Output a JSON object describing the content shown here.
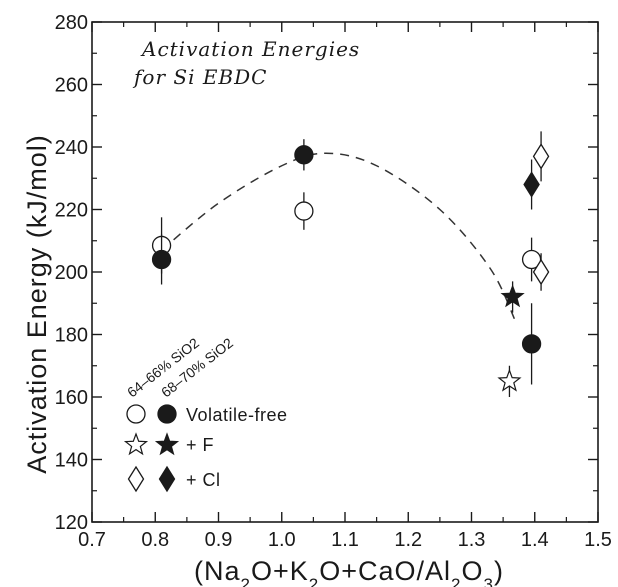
{
  "chart_data": {
    "type": "scatter",
    "title_lines": [
      "Activation Energies",
      "for Si EBDC"
    ],
    "xlabel": "(Na2O+K2O+CaO/Al2O3)",
    "ylabel": "Activation Energy (kJ/mol)",
    "xlim": [
      0.7,
      1.5
    ],
    "ylim": [
      120,
      280
    ],
    "x_ticks": [
      "0.7",
      "0.8",
      "0.9",
      "1.0",
      "1.1",
      "1.2",
      "1.3",
      "1.4",
      "1.5"
    ],
    "y_ticks": [
      "120",
      "140",
      "160",
      "180",
      "200",
      "220",
      "240",
      "260",
      "280"
    ],
    "grid": false,
    "legend_columns": [
      "64–66% SiO2",
      "68–70% SiO2"
    ],
    "legend": [
      {
        "label": "Volatile-free",
        "open_marker": "circle",
        "filled_marker": "circle"
      },
      {
        "label": "+ F",
        "open_marker": "star",
        "filled_marker": "star"
      },
      {
        "label": "+ Cl",
        "open_marker": "diamond",
        "filled_marker": "diamond"
      }
    ],
    "series": [
      {
        "marker": "circle",
        "fill": "open",
        "points": [
          {
            "x": 0.81,
            "y": 208.5,
            "err": 9
          },
          {
            "x": 1.035,
            "y": 219.5,
            "err": 6
          },
          {
            "x": 1.395,
            "y": 204,
            "err": 7
          }
        ]
      },
      {
        "marker": "circle",
        "fill": "filled",
        "points": [
          {
            "x": 0.81,
            "y": 204,
            "err": 8
          },
          {
            "x": 1.035,
            "y": 237.5,
            "err": 5
          },
          {
            "x": 1.395,
            "y": 177,
            "err": 13
          }
        ]
      },
      {
        "marker": "star",
        "fill": "open",
        "points": [
          {
            "x": 1.36,
            "y": 165,
            "err": 5
          }
        ]
      },
      {
        "marker": "star",
        "fill": "filled",
        "points": [
          {
            "x": 1.365,
            "y": 192,
            "err": 5
          }
        ]
      },
      {
        "marker": "diamond",
        "fill": "open",
        "points": [
          {
            "x": 1.41,
            "y": 237,
            "err": 8
          },
          {
            "x": 1.41,
            "y": 200,
            "err": 6
          }
        ]
      },
      {
        "marker": "diamond",
        "fill": "filled",
        "points": [
          {
            "x": 1.395,
            "y": 228,
            "err": 8
          }
        ]
      }
    ],
    "trend_curve": {
      "style": "dashed",
      "points": [
        [
          0.81,
          207
        ],
        [
          0.9,
          222
        ],
        [
          1.0,
          234
        ],
        [
          1.07,
          238
        ],
        [
          1.15,
          234
        ],
        [
          1.25,
          220
        ],
        [
          1.33,
          201
        ],
        [
          1.37,
          184
        ]
      ]
    }
  }
}
